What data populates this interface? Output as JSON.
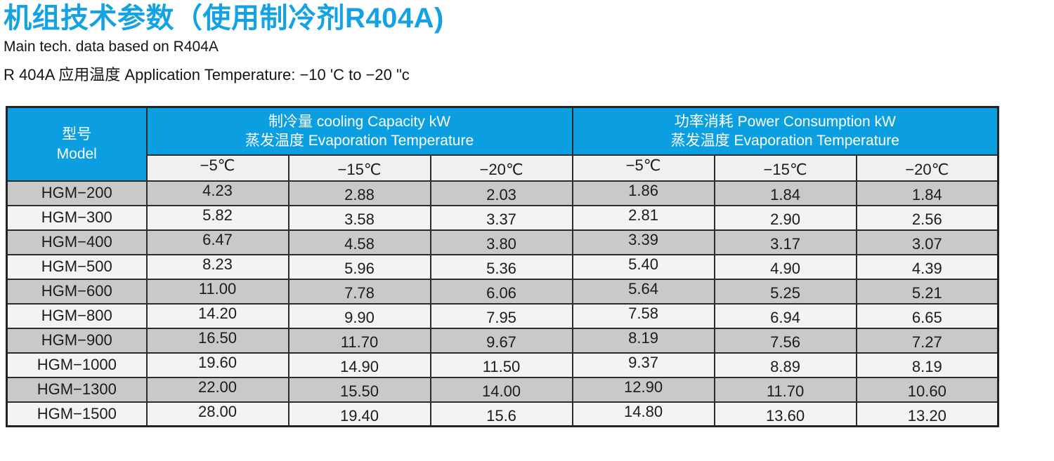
{
  "page": {
    "title": "机组技术参数（使用制冷剂R404A)",
    "subtitle": "Main tech. data based on R404A",
    "application_note": "R 404A 应用温度 Application Temperature: −10 'C to −20 \"c"
  },
  "colors": {
    "accent_blue": "#0b9fe2",
    "title_blue": "#14a2e2",
    "stripe_gray": "#c9c9c9",
    "stripe_light": "#f3f3f1",
    "temp_header_bg": "#f0f0ee",
    "border_dark": "#2e2b2b"
  },
  "table": {
    "model_header": {
      "zh": "型号",
      "en": "Model"
    },
    "groups": [
      {
        "line1": "制冷量 cooling Capacity kW",
        "line2": "蒸发温度 Evaporation Temperature"
      },
      {
        "line1": "功率消耗 Power Consumption kW",
        "line2": "蒸发温度 Evaporation Temperature"
      }
    ],
    "temp_headers": [
      "−5℃",
      "−15℃",
      "−20℃",
      "−5℃",
      "−15℃",
      "−20℃"
    ],
    "rows": [
      {
        "model": "HGM−200",
        "values": [
          "4.23",
          "2.88",
          "2.03",
          "1.86",
          "1.84",
          "1.84"
        ]
      },
      {
        "model": "HGM−300",
        "values": [
          "5.82",
          "3.58",
          "3.37",
          "2.81",
          "2.90",
          "2.56"
        ]
      },
      {
        "model": "HGM−400",
        "values": [
          "6.47",
          "4.58",
          "3.80",
          "3.39",
          "3.17",
          "3.07"
        ]
      },
      {
        "model": "HGM−500",
        "values": [
          "8.23",
          "5.96",
          "5.36",
          "5.40",
          "4.90",
          "4.39"
        ]
      },
      {
        "model": "HGM−600",
        "values": [
          "11.00",
          "7.78",
          "6.06",
          "5.64",
          "5.25",
          "5.21"
        ]
      },
      {
        "model": "HGM−800",
        "values": [
          "14.20",
          "9.90",
          "7.95",
          "7.58",
          "6.94",
          "6.65"
        ]
      },
      {
        "model": "HGM−900",
        "values": [
          "16.50",
          "11.70",
          "9.67",
          "8.19",
          "7.56",
          "7.27"
        ]
      },
      {
        "model": "HGM−1000",
        "values": [
          "19.60",
          "14.90",
          "11.50",
          "9.37",
          "8.89",
          "8.19"
        ]
      },
      {
        "model": "HGM−1300",
        "values": [
          "22.00",
          "15.50",
          "14.00",
          "12.90",
          "11.70",
          "10.60"
        ]
      },
      {
        "model": "HGM−1500",
        "values": [
          "28.00",
          "19.40",
          "15.6",
          "14.80",
          "13.60",
          "13.20"
        ]
      }
    ]
  }
}
